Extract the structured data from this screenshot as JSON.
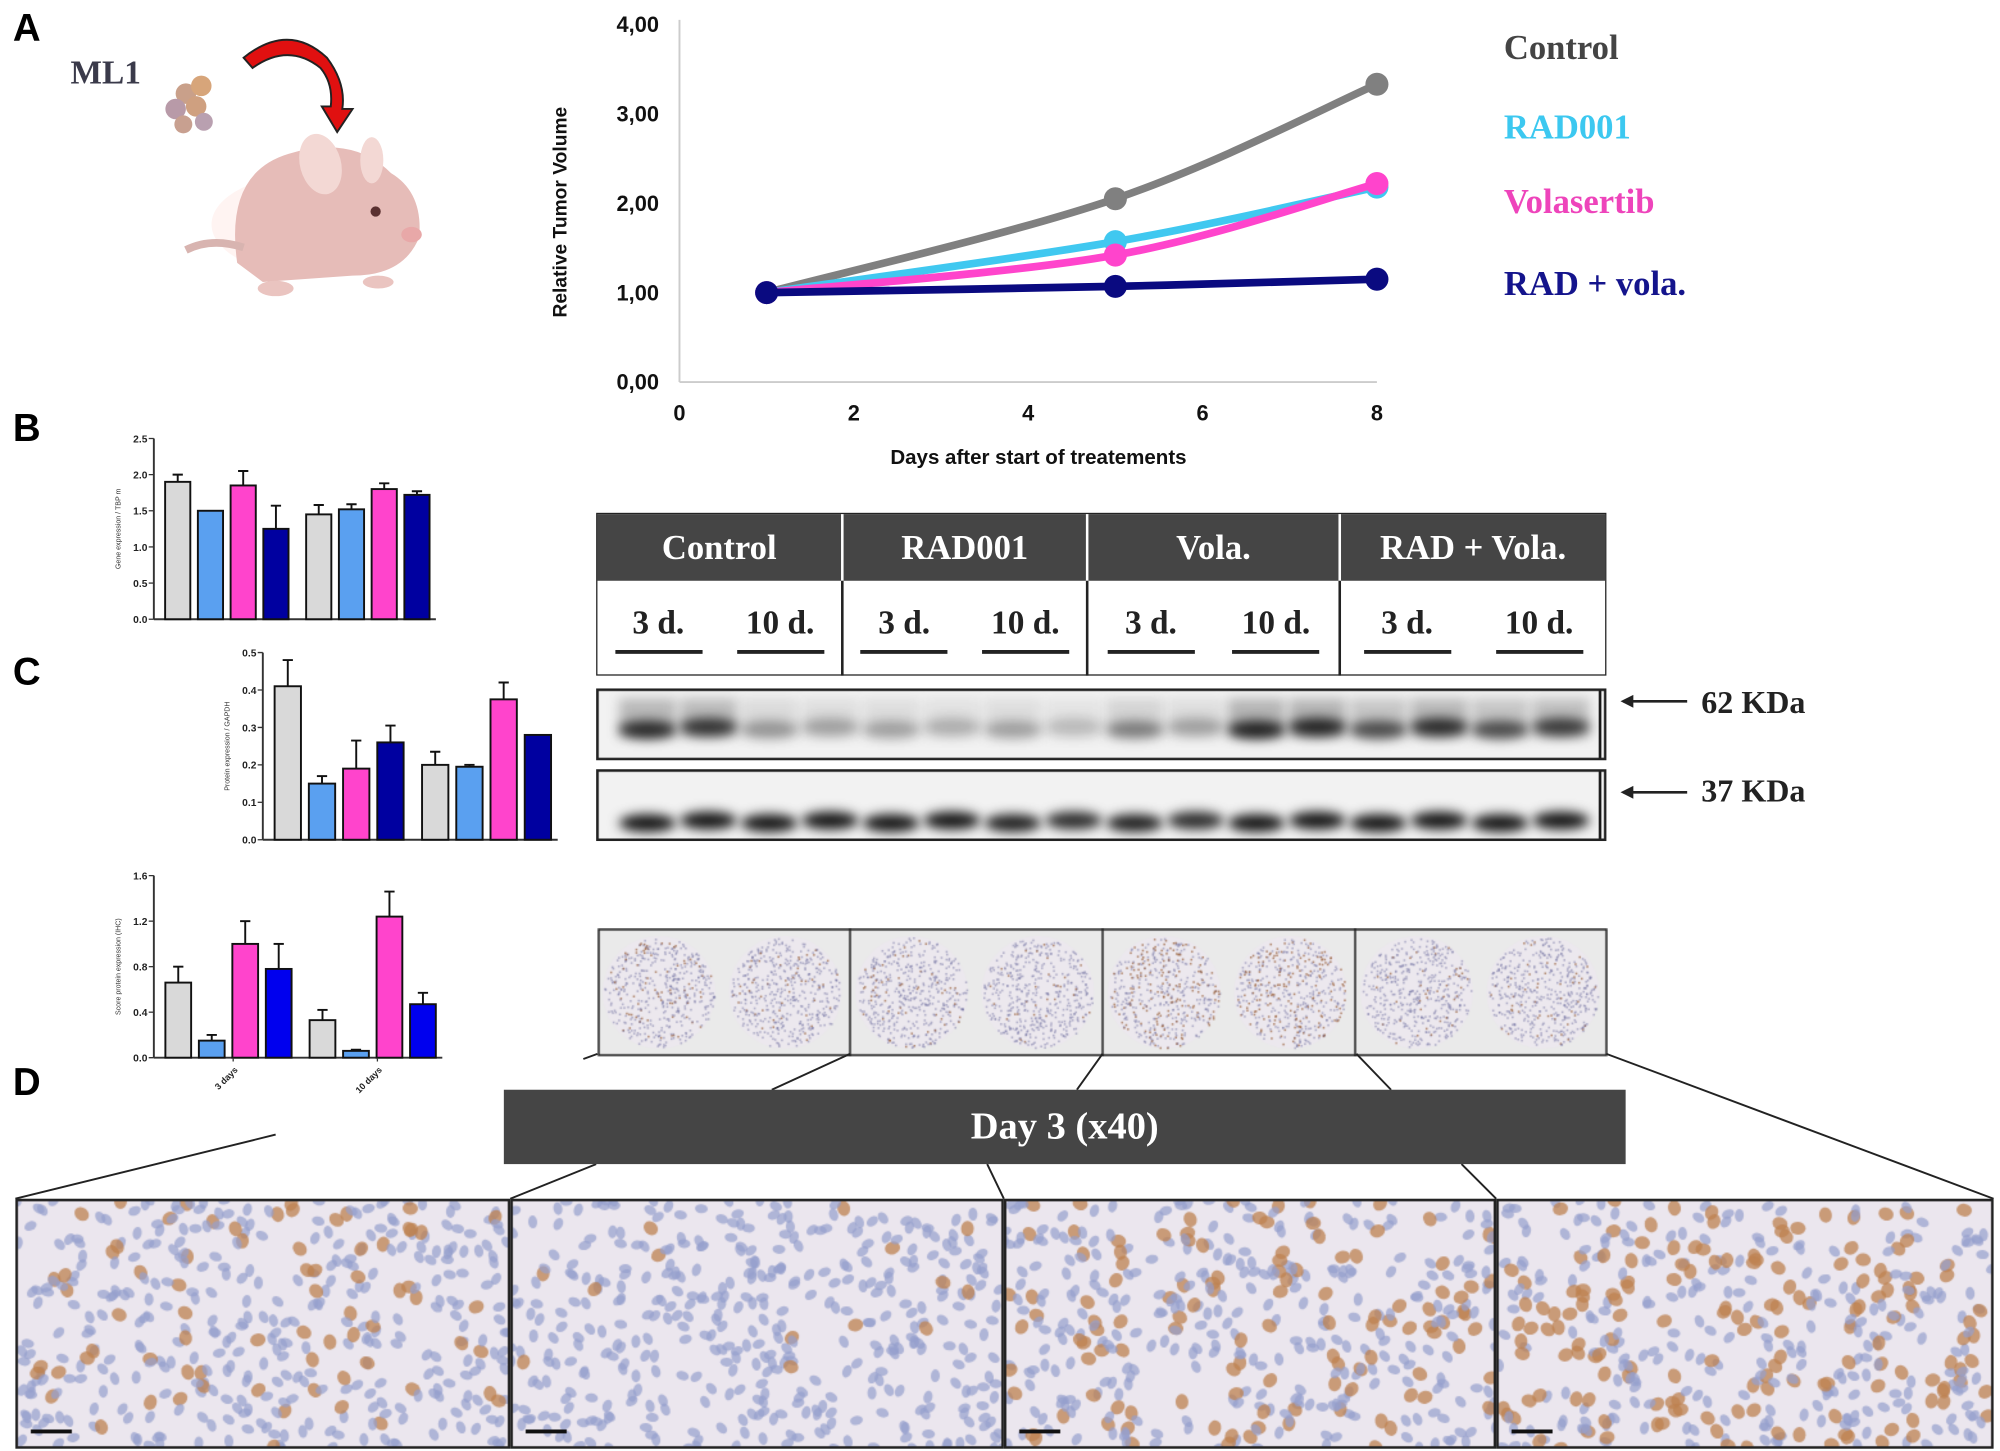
{
  "panels": {
    "a": "A",
    "b": "B",
    "c": "C",
    "d": "D"
  },
  "panel_a": {
    "cell_line": "ML1"
  },
  "legend": [
    {
      "label": "Control",
      "color": "#444444"
    },
    {
      "label": "RAD001",
      "color": "#3cc8f0"
    },
    {
      "label": "Volasertib",
      "color": "#ee44bb"
    },
    {
      "label": "RAD + vola.",
      "color": "#14148c"
    }
  ],
  "chart_data": [
    {
      "type": "line",
      "xlabel": "Days after start of treatements",
      "ylabel": "Relative Tumor Volume",
      "xlim": [
        0,
        8
      ],
      "ylim": [
        0,
        4
      ],
      "xticks": [
        "0",
        "2",
        "4",
        "6",
        "8"
      ],
      "yticks": [
        "0,00",
        "1,00",
        "2,00",
        "3,00",
        "4,00"
      ],
      "grid": false,
      "legend_position": "right",
      "x": [
        1,
        5,
        8
      ],
      "series": [
        {
          "name": "Control",
          "values": [
            1.0,
            2.05,
            3.33
          ],
          "color": "#808080"
        },
        {
          "name": "RAD001",
          "values": [
            1.0,
            1.57,
            2.18
          ],
          "color": "#40c8f0"
        },
        {
          "name": "Volasertib",
          "values": [
            1.0,
            1.42,
            2.22
          ],
          "color": "#ff44cc"
        },
        {
          "name": "RAD + vola.",
          "values": [
            1.0,
            1.07,
            1.15
          ],
          "color": "#0a0a80"
        }
      ]
    },
    {
      "type": "bar",
      "ylabel": "Gene expression / TBP m",
      "ylim": [
        0,
        2.5
      ],
      "yticks": [
        "0.0",
        "0.5",
        "1.0",
        "1.5",
        "2.0",
        "2.5"
      ],
      "groups": 2,
      "colors": [
        "#d9d9d9",
        "#5aa0f0",
        "#ff44cc",
        "#0000a0"
      ],
      "values": [
        [
          1.9,
          1.5,
          1.85,
          1.25
        ],
        [
          1.45,
          1.52,
          1.8,
          1.72
        ]
      ],
      "errors": [
        [
          0.1,
          0.0,
          0.2,
          0.32
        ],
        [
          0.13,
          0.07,
          0.08,
          0.05
        ]
      ]
    },
    {
      "type": "bar",
      "ylabel": "Protein expression / GAPDH",
      "ylim": [
        0,
        0.5
      ],
      "yticks": [
        "0.0",
        "0.1",
        "0.2",
        "0.3",
        "0.4",
        "0.5"
      ],
      "groups": 2,
      "colors": [
        "#d9d9d9",
        "#5aa0f0",
        "#ff44cc",
        "#0000a0"
      ],
      "values": [
        [
          0.41,
          0.15,
          0.19,
          0.26
        ],
        [
          0.2,
          0.195,
          0.375,
          0.28
        ]
      ],
      "errors": [
        [
          0.07,
          0.02,
          0.075,
          0.045
        ],
        [
          0.035,
          0.005,
          0.045,
          0.0
        ]
      ]
    },
    {
      "type": "bar",
      "ylabel": "Score protein expression (IHC)",
      "ylim": [
        0,
        1.6
      ],
      "yticks": [
        "0.0",
        "0.4",
        "0.8",
        "1.2",
        "1.6"
      ],
      "categories": [
        "3 days",
        "10 days"
      ],
      "groups": 2,
      "colors": [
        "#d9d9d9",
        "#5aa0f0",
        "#ff44cc",
        "#0000ee"
      ],
      "values": [
        [
          0.66,
          0.15,
          1.0,
          0.78
        ],
        [
          0.33,
          0.06,
          1.24,
          0.47
        ]
      ],
      "errors": [
        [
          0.14,
          0.05,
          0.2,
          0.22
        ],
        [
          0.09,
          0.01,
          0.22,
          0.1
        ]
      ]
    }
  ],
  "western_blot": {
    "groups": [
      "Control",
      "RAD001",
      "Vola.",
      "RAD + Vola."
    ],
    "timepoints": [
      "3 d.",
      "10 d."
    ],
    "markers": [
      "62 KDa",
      "37 KDa"
    ]
  },
  "ihc": {
    "banner": "Day 3 (x40)"
  }
}
